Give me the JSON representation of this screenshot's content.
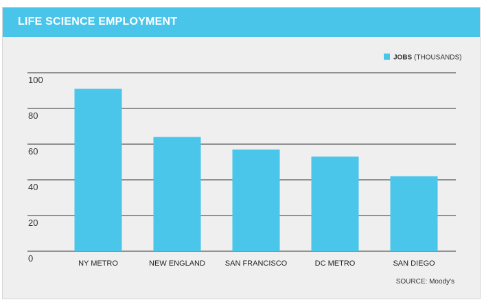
{
  "header": {
    "title": "LIFE SCIENCE EMPLOYMENT"
  },
  "source": "SOURCE: Moody's",
  "colors": {
    "accent": "#49c5ea",
    "bar": "#4ac6eb",
    "background": "#efefef",
    "gridline": "#333333"
  },
  "chart_data": {
    "type": "bar",
    "title": "",
    "xlabel": "",
    "ylabel": "",
    "categories": [
      "NY METRO",
      "NEW ENGLAND",
      "SAN FRANCISCO",
      "DC METRO",
      "SAN DIEGO"
    ],
    "series": [
      {
        "name": "JOBS (THOUSANDS)",
        "values": [
          91,
          64,
          57,
          53,
          42
        ]
      }
    ],
    "legend_label_bold": "JOBS",
    "legend_label_rest": " (THOUSANDS)",
    "yticks": [
      0,
      20,
      40,
      60,
      80,
      100
    ],
    "ylim": [
      0,
      100
    ],
    "grid": true,
    "legend_position": "top-right"
  }
}
